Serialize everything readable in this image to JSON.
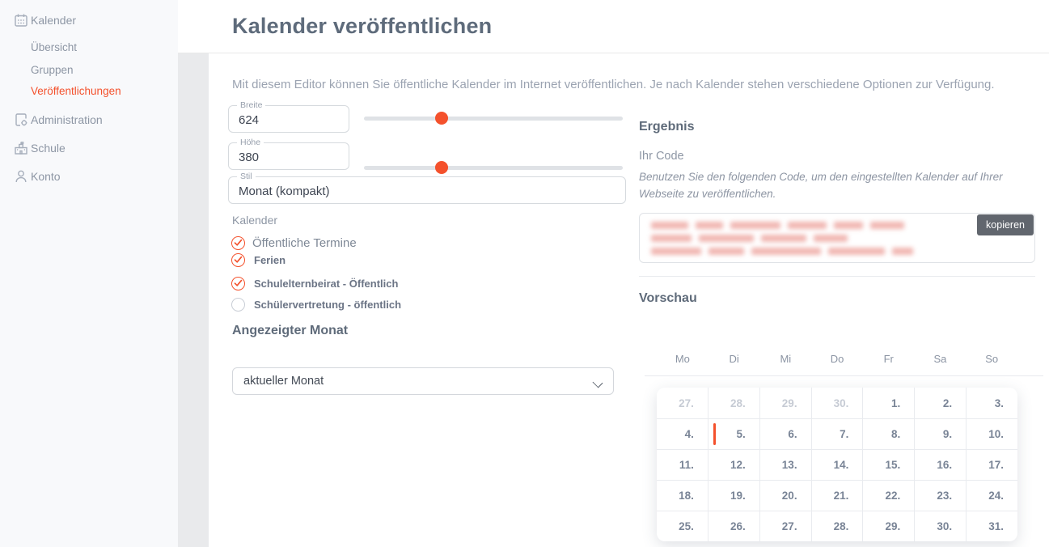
{
  "accent_color": "#f4512c",
  "sidebar": {
    "items": [
      {
        "label": "Kalender",
        "icon": "calendar",
        "child": false,
        "active": false
      },
      {
        "label": "Übersicht",
        "icon": null,
        "child": true,
        "active": false
      },
      {
        "label": "Gruppen",
        "icon": null,
        "child": true,
        "active": false
      },
      {
        "label": "Veröffentlichungen",
        "icon": null,
        "child": true,
        "active": true
      },
      {
        "label": "Administration",
        "icon": "administration",
        "child": false,
        "active": false
      },
      {
        "label": "Schule",
        "icon": "school",
        "child": false,
        "active": false
      },
      {
        "label": "Konto",
        "icon": "person",
        "child": false,
        "active": false
      }
    ]
  },
  "header": {
    "title": "Kalender veröffentlichen"
  },
  "intro": "Mit diesem Editor können Sie öffentliche Kalender im Internet veröffentlichen. Je nach Kalender stehen verschiedene Optionen zur Verfügung.",
  "form": {
    "width_field": {
      "label": "Breite",
      "value": "624",
      "slider_percent": 30
    },
    "height_field": {
      "label": "Höhe",
      "value": "380",
      "slider_percent": 30
    },
    "style_field": {
      "label": "Stil",
      "value": "Monat (kompakt)"
    },
    "calendars": {
      "label": "Kalender",
      "options": [
        {
          "label": "Öffentliche Termine",
          "checked": true
        },
        {
          "label": "Ferien",
          "checked": true
        },
        {
          "label": "Schulelternbeirat - Öffentlich",
          "checked": true
        },
        {
          "label": "Schülervertretung - öffentlich",
          "checked": false
        }
      ]
    },
    "month_section": {
      "heading": "Angezeigter Monat",
      "selected_option": "aktueller Monat"
    }
  },
  "result": {
    "heading": "Ergebnis",
    "subheading": "Ihr Code",
    "description": "Benutzen Sie den folgenden Code, um den eingestellten Kalender auf Ihrer Webseite zu veröffentlichen.",
    "copy_button_label": "kopieren",
    "code_blurred": true
  },
  "preview": {
    "heading": "Vorschau",
    "weekdays": [
      "Mo",
      "Di",
      "Mi",
      "Do",
      "Fr",
      "Sa",
      "So"
    ],
    "weeks": [
      [
        {
          "day": "27.",
          "muted": true
        },
        {
          "day": "28.",
          "muted": true
        },
        {
          "day": "29.",
          "muted": true
        },
        {
          "day": "30.",
          "muted": true
        },
        {
          "day": "1.",
          "muted": false
        },
        {
          "day": "2.",
          "muted": false
        },
        {
          "day": "3.",
          "muted": false
        }
      ],
      [
        {
          "day": "4.",
          "muted": false
        },
        {
          "day": "5.",
          "muted": false,
          "event": true
        },
        {
          "day": "6.",
          "muted": false
        },
        {
          "day": "7.",
          "muted": false
        },
        {
          "day": "8.",
          "muted": false
        },
        {
          "day": "9.",
          "muted": false
        },
        {
          "day": "10.",
          "muted": false
        }
      ],
      [
        {
          "day": "11.",
          "muted": false
        },
        {
          "day": "12.",
          "muted": false
        },
        {
          "day": "13.",
          "muted": false
        },
        {
          "day": "14.",
          "muted": false
        },
        {
          "day": "15.",
          "muted": false
        },
        {
          "day": "16.",
          "muted": false
        },
        {
          "day": "17.",
          "muted": false
        }
      ],
      [
        {
          "day": "18.",
          "muted": false
        },
        {
          "day": "19.",
          "muted": false
        },
        {
          "day": "20.",
          "muted": false
        },
        {
          "day": "21.",
          "muted": false
        },
        {
          "day": "22.",
          "muted": false
        },
        {
          "day": "23.",
          "muted": false
        },
        {
          "day": "24.",
          "muted": false
        }
      ],
      [
        {
          "day": "25.",
          "muted": false
        },
        {
          "day": "26.",
          "muted": false
        },
        {
          "day": "27.",
          "muted": false
        },
        {
          "day": "28.",
          "muted": false
        },
        {
          "day": "29.",
          "muted": false
        },
        {
          "day": "30.",
          "muted": false
        },
        {
          "day": "31.",
          "muted": false
        }
      ]
    ]
  }
}
